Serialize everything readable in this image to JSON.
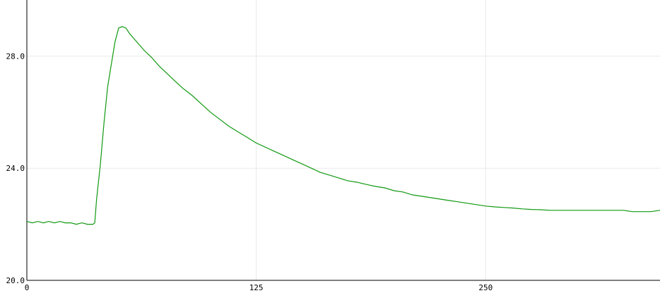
{
  "chart_data": {
    "type": "line",
    "title": "",
    "xlabel": "",
    "ylabel": "",
    "xlim": [
      0,
      345
    ],
    "ylim": [
      20,
      30
    ],
    "grid": true,
    "x_ticks": [
      {
        "value": 0,
        "label": "0"
      },
      {
        "value": 125,
        "label": "125"
      },
      {
        "value": 250,
        "label": "250"
      }
    ],
    "y_ticks": [
      {
        "value": 20,
        "label": "20.0"
      },
      {
        "value": 24,
        "label": "24.0"
      },
      {
        "value": 28,
        "label": "28.0"
      }
    ],
    "colors": {
      "line": "#119911",
      "grid": "#e9e9e9",
      "axis": "#000000"
    },
    "series": [
      {
        "x": [
          0,
          3,
          6,
          9,
          12,
          15,
          18,
          21,
          24,
          27,
          30,
          33,
          36,
          37,
          38,
          40,
          42,
          44,
          46,
          48,
          50,
          52,
          54,
          56,
          58,
          60,
          64,
          68,
          72,
          76,
          80,
          85,
          90,
          95,
          100,
          105,
          110,
          115,
          120,
          125,
          130,
          135,
          140,
          145,
          150,
          155,
          160,
          165,
          170,
          175,
          180,
          185,
          190,
          195,
          200,
          205,
          210,
          215,
          220,
          225,
          230,
          235,
          240,
          245,
          250,
          255,
          260,
          265,
          270,
          275,
          280,
          285,
          290,
          295,
          300,
          305,
          310,
          315,
          320,
          325,
          330,
          335,
          340,
          345
        ],
        "y": [
          22.1,
          22.05,
          22.1,
          22.05,
          22.1,
          22.05,
          22.1,
          22.05,
          22.05,
          22.0,
          22.05,
          22.0,
          22.0,
          22.05,
          22.9,
          24.1,
          25.6,
          26.9,
          27.7,
          28.5,
          29.0,
          29.05,
          29.0,
          28.8,
          28.65,
          28.5,
          28.2,
          27.95,
          27.65,
          27.4,
          27.15,
          26.85,
          26.6,
          26.3,
          26.0,
          25.75,
          25.5,
          25.3,
          25.1,
          24.9,
          24.75,
          24.6,
          24.45,
          24.3,
          24.15,
          24.0,
          23.85,
          23.75,
          23.65,
          23.55,
          23.5,
          23.42,
          23.35,
          23.3,
          23.2,
          23.15,
          23.05,
          23.0,
          22.95,
          22.9,
          22.85,
          22.8,
          22.75,
          22.7,
          22.65,
          22.62,
          22.6,
          22.58,
          22.55,
          22.53,
          22.52,
          22.5,
          22.5,
          22.5,
          22.5,
          22.5,
          22.5,
          22.5,
          22.5,
          22.5,
          22.45,
          22.45,
          22.45,
          22.5
        ]
      }
    ]
  }
}
